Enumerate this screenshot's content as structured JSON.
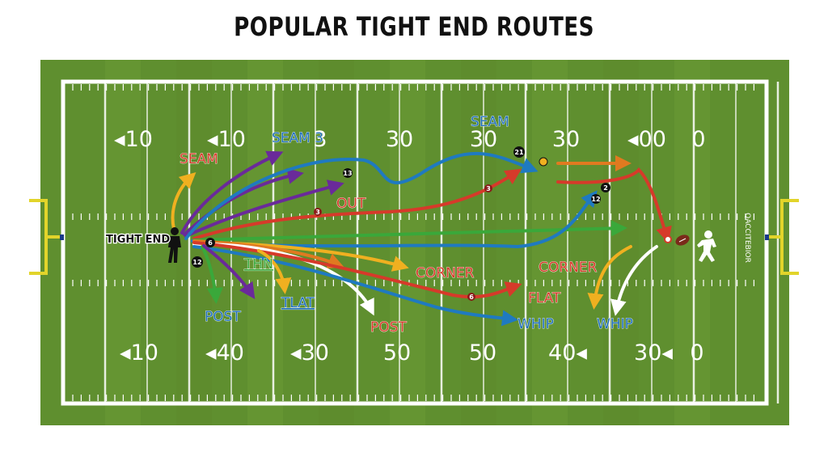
{
  "title": "POPULAR TIGHT END ROUTES",
  "colors": {
    "grass_light": "#6a9a35",
    "grass_dark": "#5c8a2c",
    "lines": "#ffffff",
    "goalpost": "#e2d42a"
  },
  "field": {
    "upper_numbers": [
      "◂10",
      "◂10",
      "3",
      "30",
      "30",
      "30",
      "◂00",
      "0"
    ],
    "lower_numbers": [
      "◂10",
      "◂40",
      "◂30",
      "50",
      "50",
      "40◂",
      "30◂",
      "0"
    ],
    "sideline_text": "QACCITEBIOR"
  },
  "tight_end": {
    "label": "TIGHT END",
    "icon": "player-icon"
  },
  "route_labels": [
    {
      "key": "seam_left",
      "text": "SEAM",
      "color": "#d63a2a"
    },
    {
      "key": "seam_mid",
      "text": "SEAM 3",
      "color": "#1f6fb8"
    },
    {
      "key": "seam_top",
      "text": "SEAM",
      "color": "#1f6fb8"
    },
    {
      "key": "out",
      "text": "OUT",
      "color": "#d63a2a"
    },
    {
      "key": "thn",
      "text": "THN",
      "color": "#3aa83a"
    },
    {
      "key": "tlat",
      "text": "TLAT",
      "color": "#1f6fb8"
    },
    {
      "key": "post_left",
      "text": "POST",
      "color": "#1f6fb8"
    },
    {
      "key": "corner_mid",
      "text": "CORNER",
      "color": "#d63a2a"
    },
    {
      "key": "post_mid",
      "text": "POST",
      "color": "#d63a2a"
    },
    {
      "key": "flat",
      "text": "FLAT",
      "color": "#d63a2a"
    },
    {
      "key": "whip_mid",
      "text": "WHIP",
      "color": "#1f6fb8"
    },
    {
      "key": "corner_right",
      "text": "CORNER",
      "color": "#d63a2a"
    },
    {
      "key": "whip_right",
      "text": "WHIP",
      "color": "#1f6fb8"
    }
  ],
  "markers": [
    "13",
    "21",
    "3",
    "3",
    "6",
    "12",
    "2",
    "12",
    "6"
  ],
  "routes": [
    {
      "name": "route-seam-left",
      "color": "#f0b020"
    },
    {
      "name": "route-purple-1",
      "color": "#6a2a9a"
    },
    {
      "name": "route-purple-2",
      "color": "#6a2a9a"
    },
    {
      "name": "route-purple-3",
      "color": "#6a2a9a"
    },
    {
      "name": "route-blue-long",
      "color": "#1f7ac0"
    },
    {
      "name": "route-red-out",
      "color": "#d63a2a"
    },
    {
      "name": "route-green-flat",
      "color": "#3aa83a"
    },
    {
      "name": "route-blue-whip",
      "color": "#1f7ac0"
    },
    {
      "name": "route-yellow-1",
      "color": "#f0b020"
    },
    {
      "name": "route-orange-1",
      "color": "#e07a20"
    },
    {
      "name": "route-white-post",
      "color": "#ffffff"
    },
    {
      "name": "route-red-corner",
      "color": "#d63a2a"
    },
    {
      "name": "route-blue-mid",
      "color": "#1f7ac0"
    },
    {
      "name": "route-green-post",
      "color": "#3aa83a"
    },
    {
      "name": "route-purple-down",
      "color": "#6a2a9a"
    },
    {
      "name": "route-yellow-tlat",
      "color": "#f0b020"
    },
    {
      "name": "route-red-right",
      "color": "#d63a2a"
    },
    {
      "name": "route-orange-top",
      "color": "#e07a20"
    },
    {
      "name": "route-yellow-right",
      "color": "#f0b020"
    },
    {
      "name": "route-white-right",
      "color": "#ffffff"
    }
  ]
}
